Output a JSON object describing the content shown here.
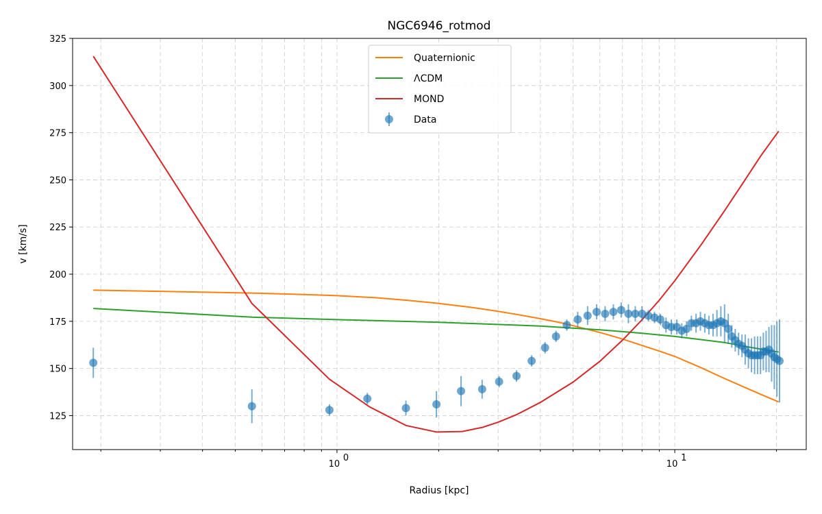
{
  "chart_data": {
    "type": "line",
    "title": "NGC6946_rotmod",
    "xlabel": "Radius [kpc]",
    "ylabel": "v [km/s]",
    "xscale": "log",
    "xlim": [
      0.165,
      24.5
    ],
    "ylim": [
      107,
      325
    ],
    "x_major_ticks": [
      1,
      10
    ],
    "x_major_tick_labels": [
      "10",
      "10"
    ],
    "x_major_tick_exponents": [
      "0",
      "1"
    ],
    "y_ticks": [
      125,
      150,
      175,
      200,
      225,
      250,
      275,
      300,
      325
    ],
    "y_tick_labels": [
      "125",
      "150",
      "175",
      "200",
      "225",
      "250",
      "275",
      "300",
      "325"
    ],
    "grid": true,
    "legend_position": "upper center",
    "series": [
      {
        "name": "Quaternionic",
        "kind": "line",
        "color": "#ff7f0e",
        "x": [
          0.19,
          0.56,
          0.8,
          1.0,
          1.3,
          1.6,
          2.0,
          2.5,
          3.0,
          3.5,
          4.0,
          4.5,
          5.0,
          6.0,
          7.0,
          8.0,
          9.0,
          10.0,
          12.0,
          14.0,
          16.0,
          18.0,
          20.3
        ],
        "y": [
          191.5,
          190.0,
          189.2,
          188.6,
          187.5,
          186.2,
          184.5,
          182.4,
          180.3,
          178.3,
          176.4,
          174.6,
          172.7,
          169.1,
          165.6,
          162.2,
          159.2,
          156.4,
          150.3,
          144.8,
          140.2,
          136.2,
          132.3
        ]
      },
      {
        "name": "ΛCDM",
        "kind": "line",
        "color": "#2ca02c",
        "x": [
          0.19,
          0.56,
          1.0,
          2.0,
          4.0,
          6.0,
          8.0,
          10.0,
          14.0,
          17.0,
          20.3
        ],
        "y": [
          181.8,
          177.2,
          175.9,
          174.5,
          172.5,
          170.5,
          168.7,
          167.0,
          163.8,
          161.0,
          158.7
        ]
      },
      {
        "name": "MOND",
        "kind": "line",
        "color": "#d62728",
        "x": [
          0.19,
          0.56,
          0.95,
          1.25,
          1.6,
          1.97,
          2.35,
          2.7,
          3.0,
          3.4,
          4.0,
          5.0,
          6.0,
          7.0,
          8.0,
          9.0,
          10.0,
          12.0,
          14.0,
          16.0,
          18.0,
          20.3
        ],
        "y": [
          315.5,
          184.5,
          144.3,
          129.6,
          119.8,
          116.3,
          116.6,
          118.8,
          121.5,
          125.5,
          132.0,
          142.8,
          153.8,
          165.0,
          175.8,
          186.2,
          196.5,
          215.9,
          233.3,
          248.9,
          262.9,
          275.8
        ]
      },
      {
        "name": "Data",
        "kind": "errorbar",
        "color": "#1f77b4",
        "x": [
          0.19,
          0.56,
          0.95,
          1.23,
          1.6,
          1.97,
          2.33,
          2.69,
          3.02,
          3.4,
          3.77,
          4.13,
          4.45,
          4.79,
          5.16,
          5.52,
          5.87,
          6.22,
          6.58,
          6.94,
          7.29,
          7.64,
          8.0,
          8.35,
          8.71,
          9.06,
          9.42,
          9.77,
          10.14,
          10.49,
          10.84,
          11.2,
          11.56,
          11.91,
          12.27,
          12.62,
          12.98,
          13.33,
          13.69,
          14.04,
          14.4,
          14.75,
          15.1,
          15.45,
          15.81,
          16.16,
          16.52,
          16.87,
          17.23,
          17.58,
          17.94,
          18.29,
          18.64,
          19.0,
          19.35,
          19.71,
          20.06,
          20.42
        ],
        "y": [
          153,
          130,
          128,
          134,
          129,
          131,
          138,
          139,
          143,
          146,
          154,
          161,
          167,
          173,
          176,
          178,
          180,
          179,
          180,
          181,
          179,
          179,
          179,
          178,
          177,
          176,
          173,
          172,
          172,
          170,
          171,
          174,
          174,
          175,
          174,
          173,
          173,
          174,
          175,
          174,
          171,
          167,
          165,
          163,
          162,
          160,
          158,
          157,
          157,
          157,
          157,
          159,
          159,
          160,
          158,
          156,
          155,
          154
        ],
        "err": [
          8,
          9,
          3,
          3,
          4,
          7,
          8,
          5,
          3,
          3,
          3,
          3,
          3,
          3,
          4,
          5,
          4,
          4,
          4,
          4,
          5,
          4,
          4,
          3,
          3,
          3,
          4,
          4,
          4,
          4,
          4,
          4,
          5,
          5,
          5,
          5,
          6,
          7,
          8,
          10,
          8,
          6,
          6,
          6,
          6,
          8,
          8,
          9,
          10,
          10,
          10,
          10,
          11,
          12,
          15,
          17,
          20,
          22
        ]
      }
    ]
  }
}
